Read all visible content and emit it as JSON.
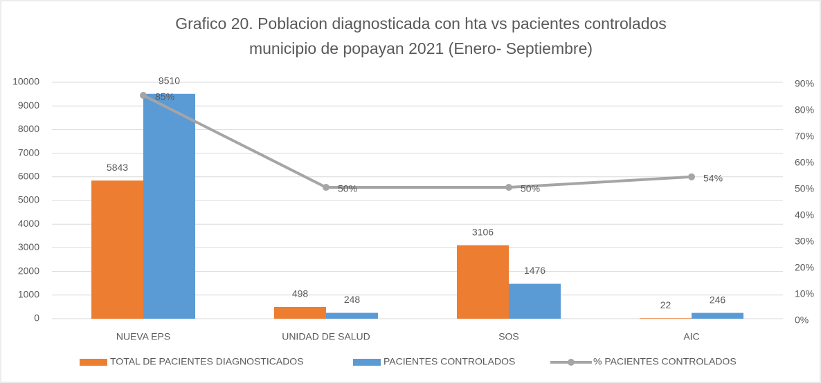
{
  "chart_data": {
    "type": "bar",
    "title": [
      "Grafico 20. Poblacion diagnosticada con hta  vs pacientes controlados",
      "municipio de popayan 2021 (Enero- Septiembre)"
    ],
    "categories": [
      "NUEVA EPS",
      "UNIDAD DE SALUD",
      "SOS",
      "AIC"
    ],
    "series": [
      {
        "name": "TOTAL DE PACIENTES DIAGNOSTICADOS",
        "color": "#ed7d31",
        "values": [
          5843,
          498,
          3106,
          22
        ]
      },
      {
        "name": "PACIENTES CONTROLADOS",
        "color": "#5b9bd5",
        "values": [
          9510,
          248,
          1476,
          246
        ]
      },
      {
        "name": "% PACIENTES CONTROLADOS",
        "color": "#a5a5a5",
        "type": "line",
        "axis": "y2",
        "values": [
          85,
          50,
          50,
          54
        ],
        "value_labels": [
          "85%",
          "50%",
          "50%",
          "54%"
        ]
      }
    ],
    "ylim": [
      0,
      10000
    ],
    "yticks": [
      0,
      1000,
      2000,
      3000,
      4000,
      5000,
      6000,
      7000,
      8000,
      9000,
      10000
    ],
    "y2lim": [
      0,
      90
    ],
    "y2ticks": [
      {
        "value": 0,
        "label": "0%"
      },
      {
        "value": 10,
        "label": "10%"
      },
      {
        "value": 20,
        "label": "20%"
      },
      {
        "value": 30,
        "label": "30%"
      },
      {
        "value": 40,
        "label": "40%"
      },
      {
        "value": 50,
        "label": "50%"
      },
      {
        "value": 60,
        "label": "60%"
      },
      {
        "value": 70,
        "label": "70%"
      },
      {
        "value": 80,
        "label": "80%"
      },
      {
        "value": 90,
        "label": "90%"
      }
    ],
    "grid": true,
    "legend": "bottom"
  }
}
